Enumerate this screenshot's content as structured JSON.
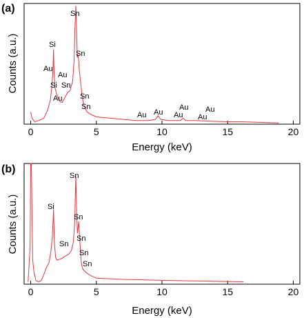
{
  "chart_data": [
    {
      "panel": "(a)",
      "type": "line",
      "xlabel": "Energy (keV)",
      "ylabel": "Counts (a.u.)",
      "xlim": [
        -0.5,
        20.5
      ],
      "ylim": [
        0,
        100
      ],
      "xticks": [
        "0",
        "5",
        "10",
        "15",
        "20"
      ],
      "line_color": "#e8343a",
      "series": [
        {
          "x": [
            0.0,
            0.1,
            0.3,
            0.6,
            1.0,
            1.3,
            1.5,
            1.6,
            1.7,
            1.74,
            1.78,
            1.85,
            2.0,
            2.2,
            2.4,
            2.6,
            2.8,
            3.0,
            3.2,
            3.3,
            3.38,
            3.44,
            3.5,
            3.55,
            3.6,
            3.66,
            3.7,
            3.8,
            3.9,
            4.0,
            4.1,
            4.3,
            4.6,
            5.0,
            6.0,
            7.0,
            8.0,
            9.0,
            9.5,
            9.7,
            9.9,
            10.5,
            11.0,
            11.4,
            11.6,
            11.8,
            12.5,
            13.5,
            15.0,
            16.0,
            17.5,
            18.9
          ],
          "y": [
            10,
            5,
            2,
            3,
            5,
            12,
            20,
            30,
            45,
            62,
            44,
            30,
            24,
            19,
            18,
            22,
            26,
            28,
            36,
            52,
            82,
            98,
            76,
            55,
            58,
            52,
            45,
            35,
            25,
            18,
            14,
            10,
            8,
            6,
            5,
            4,
            3,
            3,
            4,
            7,
            4,
            3,
            3,
            3,
            5,
            3,
            3,
            2.5,
            2,
            2,
            1.5,
            1
          ]
        }
      ],
      "annotations": [
        "Sn",
        "Si",
        "Sn",
        "Au",
        "Au",
        "Si",
        "Sn",
        "Au",
        "Sn",
        "Sn",
        "Au",
        "Au",
        "Au",
        "Au",
        "Au",
        "Au"
      ]
    },
    {
      "panel": "(b)",
      "type": "line",
      "xlabel": "Energy (keV)",
      "ylabel": "Counts (a.u.)",
      "xlim": [
        -0.5,
        20.5
      ],
      "ylim": [
        0,
        100
      ],
      "xticks": [
        "0",
        "5",
        "10",
        "15",
        "20"
      ],
      "line_color": "#e8343a",
      "series": [
        {
          "x": [
            -0.2,
            -0.05,
            0.0,
            0.05,
            0.1,
            0.15,
            0.25,
            0.4,
            0.6,
            0.8,
            1.0,
            1.2,
            1.4,
            1.55,
            1.65,
            1.74,
            1.8,
            1.9,
            2.0,
            2.3,
            2.6,
            2.9,
            3.1,
            3.25,
            3.35,
            3.44,
            3.5,
            3.56,
            3.62,
            3.66,
            3.72,
            3.8,
            3.85,
            3.92,
            4.0,
            4.3,
            4.6,
            5.0,
            6.0,
            7.0,
            8.0,
            9.0,
            10.0,
            11.0,
            12.0,
            13.0,
            14.0,
            15.0,
            16.2
          ],
          "y": [
            2,
            30,
            100,
            100,
            60,
            20,
            10,
            3,
            2,
            3,
            8,
            14,
            18,
            28,
            40,
            62,
            35,
            22,
            20,
            21,
            23,
            25,
            28,
            35,
            50,
            90,
            60,
            42,
            48,
            52,
            40,
            26,
            18,
            14,
            12,
            9,
            7,
            5,
            4.5,
            4,
            3.8,
            3.5,
            3.2,
            3,
            2.8,
            2.6,
            2.4,
            2.2,
            2
          ]
        }
      ],
      "annotations": [
        "Sn",
        "Si",
        "Sn",
        "Sn",
        "Sn",
        "Sn",
        "Sn"
      ]
    }
  ]
}
